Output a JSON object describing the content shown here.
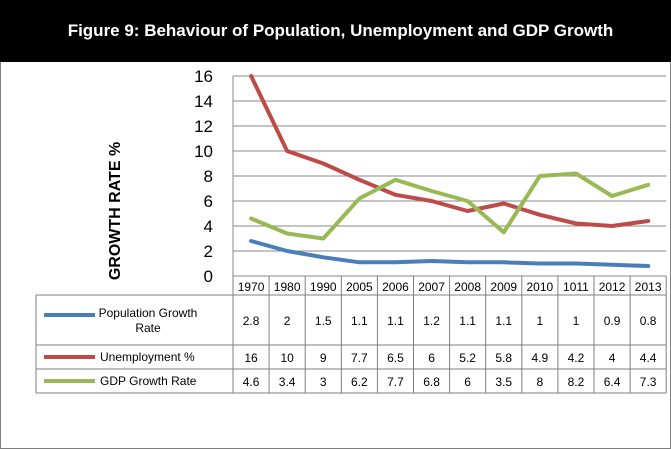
{
  "chart_data": {
    "type": "line",
    "title": "Figure 9: Behaviour of Population, Unemployment and GDP Growth",
    "ylabel": "GROWTH RATE %",
    "categories": [
      "1970",
      "1980",
      "1990",
      "2005",
      "2006",
      "2007",
      "2008",
      "2009",
      "2010",
      "1011",
      "2012",
      "2013"
    ],
    "yticks": [
      "0",
      "2",
      "4",
      "6",
      "8",
      "10",
      "12",
      "14",
      "16"
    ],
    "ylim": [
      0,
      16
    ],
    "grid": true,
    "legend_position": "data table below chart",
    "series": [
      {
        "name": "Population Growth Rate",
        "color": "#4a7ebb",
        "values": [
          2.8,
          2,
          1.5,
          1.1,
          1.1,
          1.2,
          1.1,
          1.1,
          1,
          1,
          0.9,
          0.8
        ]
      },
      {
        "name": "Unemployment %",
        "color": "#be4b48",
        "values": [
          16,
          10,
          9,
          7.7,
          6.5,
          6,
          5.2,
          5.8,
          4.9,
          4.2,
          4,
          4.4
        ]
      },
      {
        "name": "GDP Growth Rate",
        "color": "#98b954",
        "values": [
          4.6,
          3.4,
          3,
          6.2,
          7.7,
          6.8,
          6,
          3.5,
          8,
          8.2,
          6.4,
          7.3
        ]
      }
    ]
  }
}
